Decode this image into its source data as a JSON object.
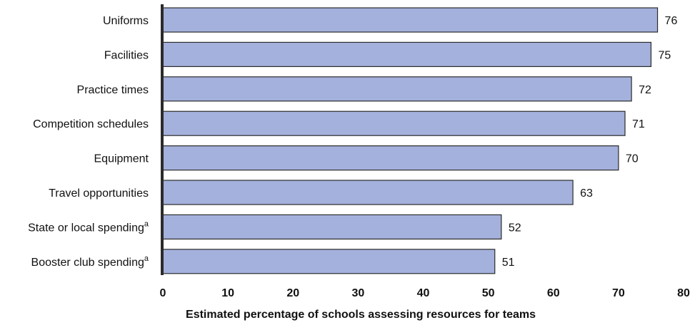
{
  "chart_data": {
    "type": "bar",
    "orientation": "horizontal",
    "categories": [
      {
        "label": "Uniforms",
        "sup": ""
      },
      {
        "label": "Facilities",
        "sup": ""
      },
      {
        "label": "Practice times",
        "sup": ""
      },
      {
        "label": "Competition schedules",
        "sup": ""
      },
      {
        "label": "Equipment",
        "sup": ""
      },
      {
        "label": "Travel opportunities",
        "sup": ""
      },
      {
        "label": "State or local spending",
        "sup": "a"
      },
      {
        "label": "Booster club spending",
        "sup": "a"
      }
    ],
    "values": [
      76,
      75,
      72,
      71,
      70,
      63,
      52,
      51
    ],
    "value_labels": [
      "76",
      "75",
      "72",
      "71",
      "70",
      "63",
      "52",
      "51"
    ],
    "xlabel": "Estimated percentage of schools assessing resources for teams",
    "xlim": [
      0,
      80
    ],
    "xticks": [
      "0",
      "10",
      "20",
      "30",
      "40",
      "50",
      "60",
      "70",
      "80"
    ],
    "grid": false,
    "colors": {
      "bar_fill": "#a4b1dc",
      "bar_stroke": "#2b2b2b",
      "axis_line": "#2b2b2b"
    }
  }
}
